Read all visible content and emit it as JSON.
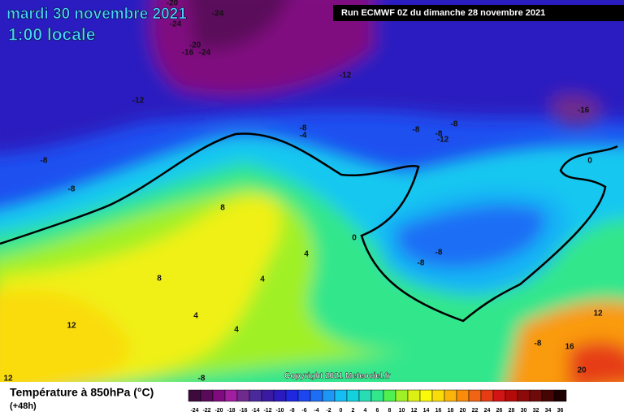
{
  "header": {
    "date": "mardi 30 novembre 2021",
    "time": "1:00 locale",
    "run": "Run ECMWF 0Z du dimanche 28 novembre 2021"
  },
  "map": {
    "contour_labels": [
      -20,
      -24,
      -24,
      -20,
      -16,
      -24,
      -12,
      -12,
      -16,
      -8,
      -4,
      -8,
      -8,
      -8,
      -12,
      -8,
      -8,
      0,
      8,
      0,
      -8,
      -8,
      4,
      8,
      4,
      12,
      4,
      4,
      12,
      -8,
      16,
      20,
      12,
      -8
    ],
    "copyright": "Copyright 2021 Meteociel.fr"
  },
  "legend": {
    "title": "Température à 850hPa (°C)",
    "lead_time": "(+48h)",
    "values": [
      -24,
      -22,
      -20,
      -18,
      -16,
      -14,
      -12,
      -10,
      -8,
      -6,
      -4,
      -2,
      0,
      2,
      4,
      6,
      8,
      10,
      12,
      14,
      16,
      18,
      20,
      22,
      24,
      26,
      28,
      30,
      32,
      34,
      36
    ],
    "colors": [
      "#3c0a3c",
      "#5a0a5a",
      "#800a80",
      "#a01ea0",
      "#6e2a8c",
      "#4a2a9a",
      "#3a1aa0",
      "#2a1ac0",
      "#1e28e0",
      "#1e46f0",
      "#1e6ef5",
      "#1e96f5",
      "#14bef5",
      "#14d2dc",
      "#28dcb4",
      "#32e68c",
      "#50f050",
      "#a0f028",
      "#dcf014",
      "#fafa0a",
      "#fadc0a",
      "#fab40a",
      "#fa8c0a",
      "#f06414",
      "#e63c14",
      "#d21414",
      "#b40a0a",
      "#8c0a0a",
      "#6e0a0a",
      "#460505",
      "#1e0000"
    ]
  }
}
